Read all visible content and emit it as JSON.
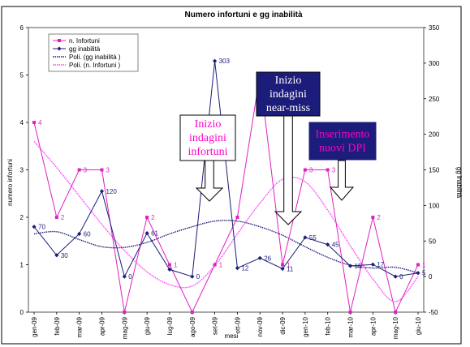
{
  "chart_data": {
    "type": "line",
    "title": "Numero infortuni e gg inabilità",
    "xlabel": "mesi",
    "ylabel": "numero infortuni",
    "y2label": "gg inabilità",
    "ylim": [
      0,
      6
    ],
    "y2lim": [
      -50,
      350
    ],
    "yticks": [
      "0",
      "1",
      "2",
      "3",
      "4",
      "5",
      "6"
    ],
    "y2ticks": [
      "-50",
      "0",
      "50",
      "100",
      "150",
      "200",
      "250",
      "300",
      "350"
    ],
    "grid": false,
    "legend_position": "top-left",
    "categories": [
      "gen-09",
      "feb-09",
      "mar-09",
      "apr-09",
      "mag-09",
      "giu-09",
      "lug-09",
      "ago-09",
      "set-09",
      "ott-09",
      "nov-09",
      "dic-09",
      "gen-10",
      "feb-10",
      "mar-10",
      "apr-10",
      "mag-10",
      "giu-10"
    ],
    "series": [
      {
        "name": "n. Infortuni",
        "axis": "left",
        "color": "#e020c0",
        "marker": "square",
        "values": [
          4,
          2,
          3,
          3,
          0,
          2,
          1,
          0,
          1,
          2,
          5,
          1,
          3,
          3,
          0,
          2,
          0,
          1
        ],
        "labels": [
          "4",
          "2",
          "3",
          "3",
          "",
          "2",
          "1",
          "",
          "1",
          "",
          "",
          "1",
          "3",
          "3",
          "",
          "2",
          "",
          "1"
        ]
      },
      {
        "name": "gg inabilità",
        "axis": "right",
        "color": "#1c1c7a",
        "marker": "diamond",
        "values": [
          70,
          30,
          60,
          120,
          0,
          61,
          10,
          0,
          303,
          12,
          26,
          11,
          55,
          45,
          15,
          17,
          0,
          5
        ],
        "labels": [
          "70",
          "30",
          "60",
          "120",
          "0",
          "61",
          "",
          "0",
          "303",
          "12",
          "26",
          "11",
          "55",
          "45",
          "15",
          "17",
          "0",
          "5"
        ]
      },
      {
        "name": "Poli. (gg inabilità )",
        "axis": "right",
        "color": "#1c1c7a",
        "style": "trend",
        "values": [
          60,
          63,
          52,
          42,
          41,
          48,
          60,
          70,
          78,
          78,
          70,
          58,
          42,
          27,
          16,
          12,
          13,
          5
        ]
      },
      {
        "name": "Poli. (n. Infortuni )",
        "axis": "left",
        "color": "#ff40ff",
        "style": "trend",
        "values": [
          3.6,
          3.05,
          2.45,
          1.85,
          1.3,
          0.85,
          0.58,
          0.55,
          0.98,
          1.65,
          2.3,
          2.8,
          2.75,
          2.15,
          1.4,
          0.7,
          0.22,
          0.75
        ]
      }
    ],
    "annotations": [
      {
        "id": "inizio-indagini-infortuni",
        "lines": [
          "Inizio",
          "indagini",
          "infortuni"
        ],
        "text_color": "#ff00cc",
        "box_border": "#000000"
      },
      {
        "id": "inizio-indagini-near-miss",
        "lines": [
          "Inizio",
          "indagini",
          "near-miss"
        ],
        "text_color": "#ffffff",
        "box_border": "#000000"
      },
      {
        "id": "inserimento-nuovi-dpi",
        "lines": [
          "Inserimento",
          "nuovi DPI"
        ],
        "text_color": "#ff00cc",
        "box_border": "#ffffff"
      }
    ]
  }
}
